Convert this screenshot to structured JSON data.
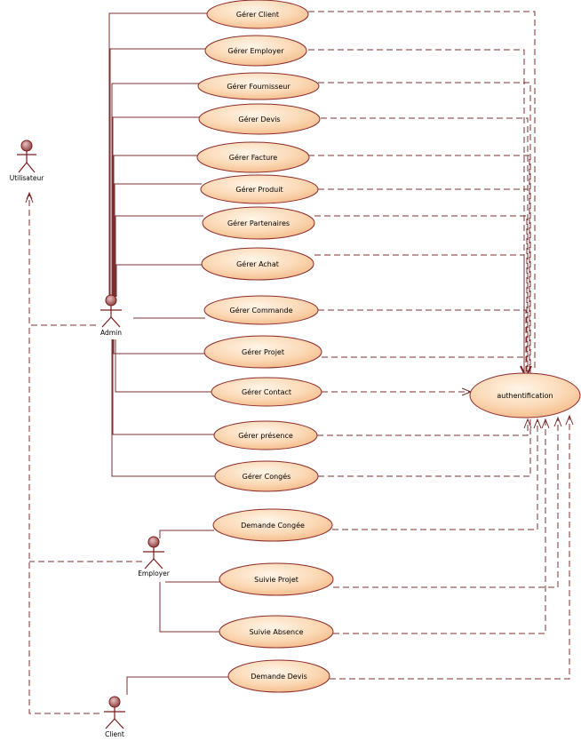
{
  "colors": {
    "ellipse_fill_light": "#fff5e8",
    "ellipse_fill_dark": "#f3b37f",
    "ellipse_stroke": "#8b2b2b",
    "line": "#7a3030",
    "actor_head": "#a55a5a"
  },
  "actors": [
    {
      "id": "utilisateur",
      "label": "Utilisateur",
      "icon": "stick-figure"
    },
    {
      "id": "admin",
      "label": "Admin",
      "icon": "stick-figure"
    },
    {
      "id": "employer",
      "label": "Employer",
      "icon": "stick-figure"
    },
    {
      "id": "client",
      "label": "Client",
      "icon": "stick-figure"
    }
  ],
  "use_cases": [
    {
      "id": "gerer-client",
      "label": "Gérer Client"
    },
    {
      "id": "gerer-employer",
      "label": "Gérer Employer"
    },
    {
      "id": "gerer-fournisseur",
      "label": "Gérer Fournisseur"
    },
    {
      "id": "gerer-devis",
      "label": "Gérer Devis"
    },
    {
      "id": "gerer-facture",
      "label": "Gérer Facture"
    },
    {
      "id": "gerer-produit",
      "label": "Gérer Produit"
    },
    {
      "id": "gerer-partenaires",
      "label": "Gérer Partenaires"
    },
    {
      "id": "gerer-achat",
      "label": "Gérer Achat"
    },
    {
      "id": "gerer-commande",
      "label": "Gérer Commande"
    },
    {
      "id": "gerer-projet",
      "label": "Gérer Projet"
    },
    {
      "id": "gerer-contact",
      "label": "Gérer Contact"
    },
    {
      "id": "gerer-presence",
      "label": "Gérer présence"
    },
    {
      "id": "gerer-conges",
      "label": "Gérer Congés"
    },
    {
      "id": "demande-congee",
      "label": "Demande Congée"
    },
    {
      "id": "suivie-projet",
      "label": "Suivie Projet"
    },
    {
      "id": "suivie-absence",
      "label": "Suivie Absence"
    },
    {
      "id": "demande-devis",
      "label": "Demande Devis"
    },
    {
      "id": "authentification",
      "label": "authentification"
    }
  ]
}
